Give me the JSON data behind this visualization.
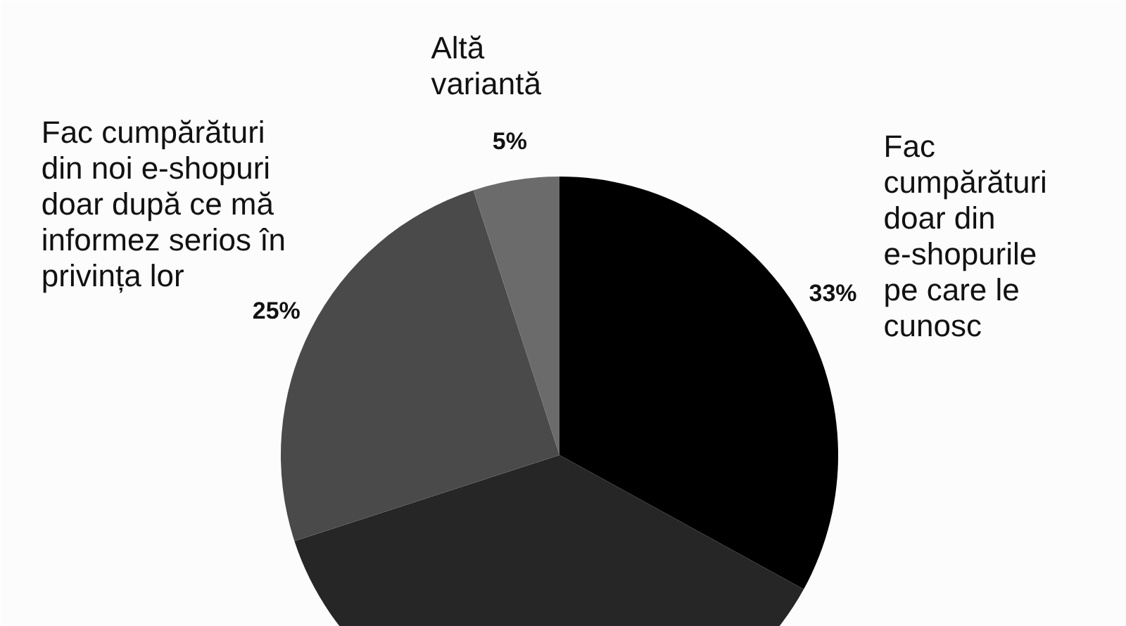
{
  "chart_data": {
    "type": "pie",
    "categories": [
      "Fac\ncumpărături\ndoar din\ne-shopurile\npe care le\ncunosc",
      null,
      "Fac cumpărături\ndin noi e-shopuri\ndoar după ce mă\ninformez serios în\nprivința lor",
      "Altă\nvariantă"
    ],
    "values": [
      33,
      37,
      25,
      5
    ],
    "colors": [
      "#000000",
      "#262626",
      "#4a4a4a",
      "#6b6b6b"
    ],
    "value_labels": [
      "33%",
      null,
      "25%",
      "5%"
    ]
  }
}
